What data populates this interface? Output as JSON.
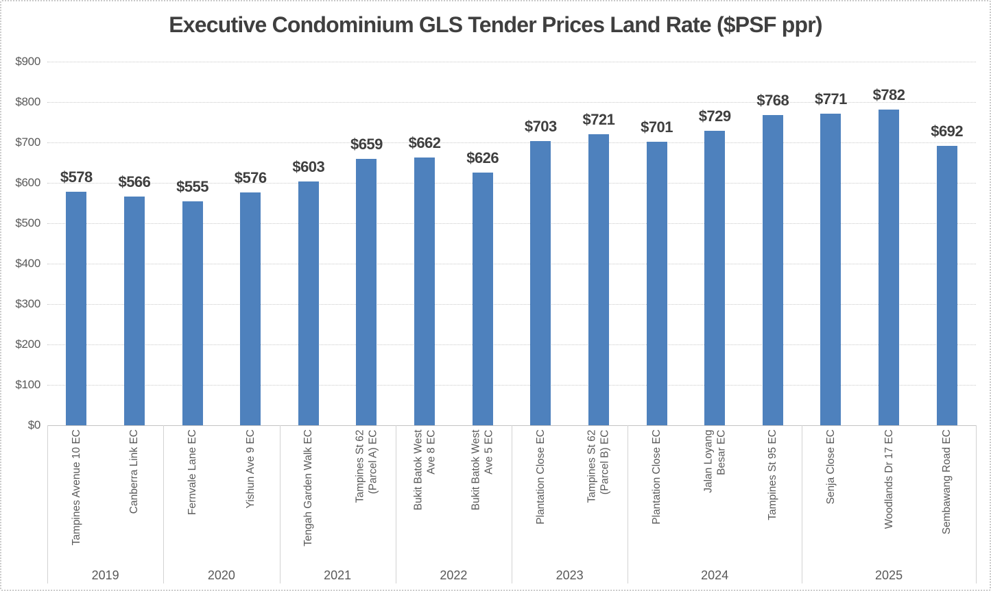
{
  "chart_data": {
    "type": "bar",
    "title": "Executive Condominium GLS Tender Prices Land Rate ($PSF ppr)",
    "xlabel": "",
    "ylabel": "",
    "ylim": [
      0,
      900
    ],
    "ytick_step": 100,
    "yticks": [
      "$0",
      "$100",
      "$200",
      "$300",
      "$400",
      "$500",
      "$600",
      "$700",
      "$800",
      "$900"
    ],
    "grid": true,
    "legend": false,
    "bar_color": "#4E81BD",
    "value_label_color": "#3F3F3F",
    "axis_text_color": "#595959",
    "categories": [
      "Tampines Avenue 10 EC",
      "Canberra Link EC",
      "Fernvale Lane EC",
      "Yishun Ave 9 EC",
      "Tengah Garden Walk EC",
      "Tampines St 62 (Parcel A) EC",
      "Bukit Batok West Ave 8 EC",
      "Bukit Batok West Ave 5 EC",
      "Plantation Close EC",
      "Tampines St 62 (Parcel B) EC",
      "Plantation Close EC",
      "Jalan Loyang Besar EC",
      "Tampines St 95 EC",
      "Senja Close EC",
      "Woodlands Dr 17 EC",
      "Sembawang Road EC"
    ],
    "values": [
      578,
      566,
      555,
      576,
      603,
      659,
      662,
      626,
      703,
      721,
      701,
      729,
      768,
      771,
      782,
      692
    ],
    "year_groups": [
      {
        "year": "2019",
        "count": 2,
        "items": [
          {
            "name": "Tampines Avenue 10 EC",
            "lines": [
              "Tampines Avenue 10 EC"
            ],
            "value": 578,
            "value_label": "$578"
          },
          {
            "name": "Canberra Link EC",
            "lines": [
              "Canberra Link EC"
            ],
            "value": 566,
            "value_label": "$566"
          }
        ]
      },
      {
        "year": "2020",
        "count": 2,
        "items": [
          {
            "name": "Fernvale Lane EC",
            "lines": [
              "Fernvale Lane EC"
            ],
            "value": 555,
            "value_label": "$555"
          },
          {
            "name": "Yishun Ave 9 EC",
            "lines": [
              "Yishun Ave 9 EC"
            ],
            "value": 576,
            "value_label": "$576"
          }
        ]
      },
      {
        "year": "2021",
        "count": 2,
        "items": [
          {
            "name": "Tengah Garden Walk EC",
            "lines": [
              "Tengah Garden Walk EC"
            ],
            "value": 603,
            "value_label": "$603"
          },
          {
            "name": "Tampines St 62 (Parcel A) EC",
            "lines": [
              "Tampines St 62",
              "(Parcel A) EC"
            ],
            "value": 659,
            "value_label": "$659"
          }
        ]
      },
      {
        "year": "2022",
        "count": 2,
        "items": [
          {
            "name": "Bukit Batok West Ave 8 EC",
            "lines": [
              "Bukit Batok West",
              "Ave 8 EC"
            ],
            "value": 662,
            "value_label": "$662"
          },
          {
            "name": "Bukit Batok West Ave 5 EC",
            "lines": [
              "Bukit Batok West",
              "Ave 5 EC"
            ],
            "value": 626,
            "value_label": "$626"
          }
        ]
      },
      {
        "year": "2023",
        "count": 2,
        "items": [
          {
            "name": "Plantation Close EC",
            "lines": [
              "Plantation Close EC"
            ],
            "value": 703,
            "value_label": "$703"
          },
          {
            "name": "Tampines St 62 (Parcel B) EC",
            "lines": [
              "Tampines St 62",
              "(Parcel B) EC"
            ],
            "value": 721,
            "value_label": "$721"
          }
        ]
      },
      {
        "year": "2024",
        "count": 3,
        "items": [
          {
            "name": "Plantation Close EC",
            "lines": [
              "Plantation Close EC"
            ],
            "value": 701,
            "value_label": "$701"
          },
          {
            "name": "Jalan Loyang Besar EC",
            "lines": [
              "Jalan Loyang",
              "Besar EC"
            ],
            "value": 729,
            "value_label": "$729"
          },
          {
            "name": "Tampines St 95 EC",
            "lines": [
              "Tampines St 95 EC"
            ],
            "value": 768,
            "value_label": "$768"
          }
        ]
      },
      {
        "year": "2025",
        "count": 3,
        "items": [
          {
            "name": "Senja Close EC",
            "lines": [
              "Senja Close EC"
            ],
            "value": 771,
            "value_label": "$771"
          },
          {
            "name": "Woodlands Dr 17 EC",
            "lines": [
              "Woodlands Dr 17 EC"
            ],
            "value": 782,
            "value_label": "$782"
          },
          {
            "name": "Sembawang Road EC",
            "lines": [
              "Sembawang Road EC"
            ],
            "value": 692,
            "value_label": "$692"
          }
        ]
      }
    ]
  }
}
